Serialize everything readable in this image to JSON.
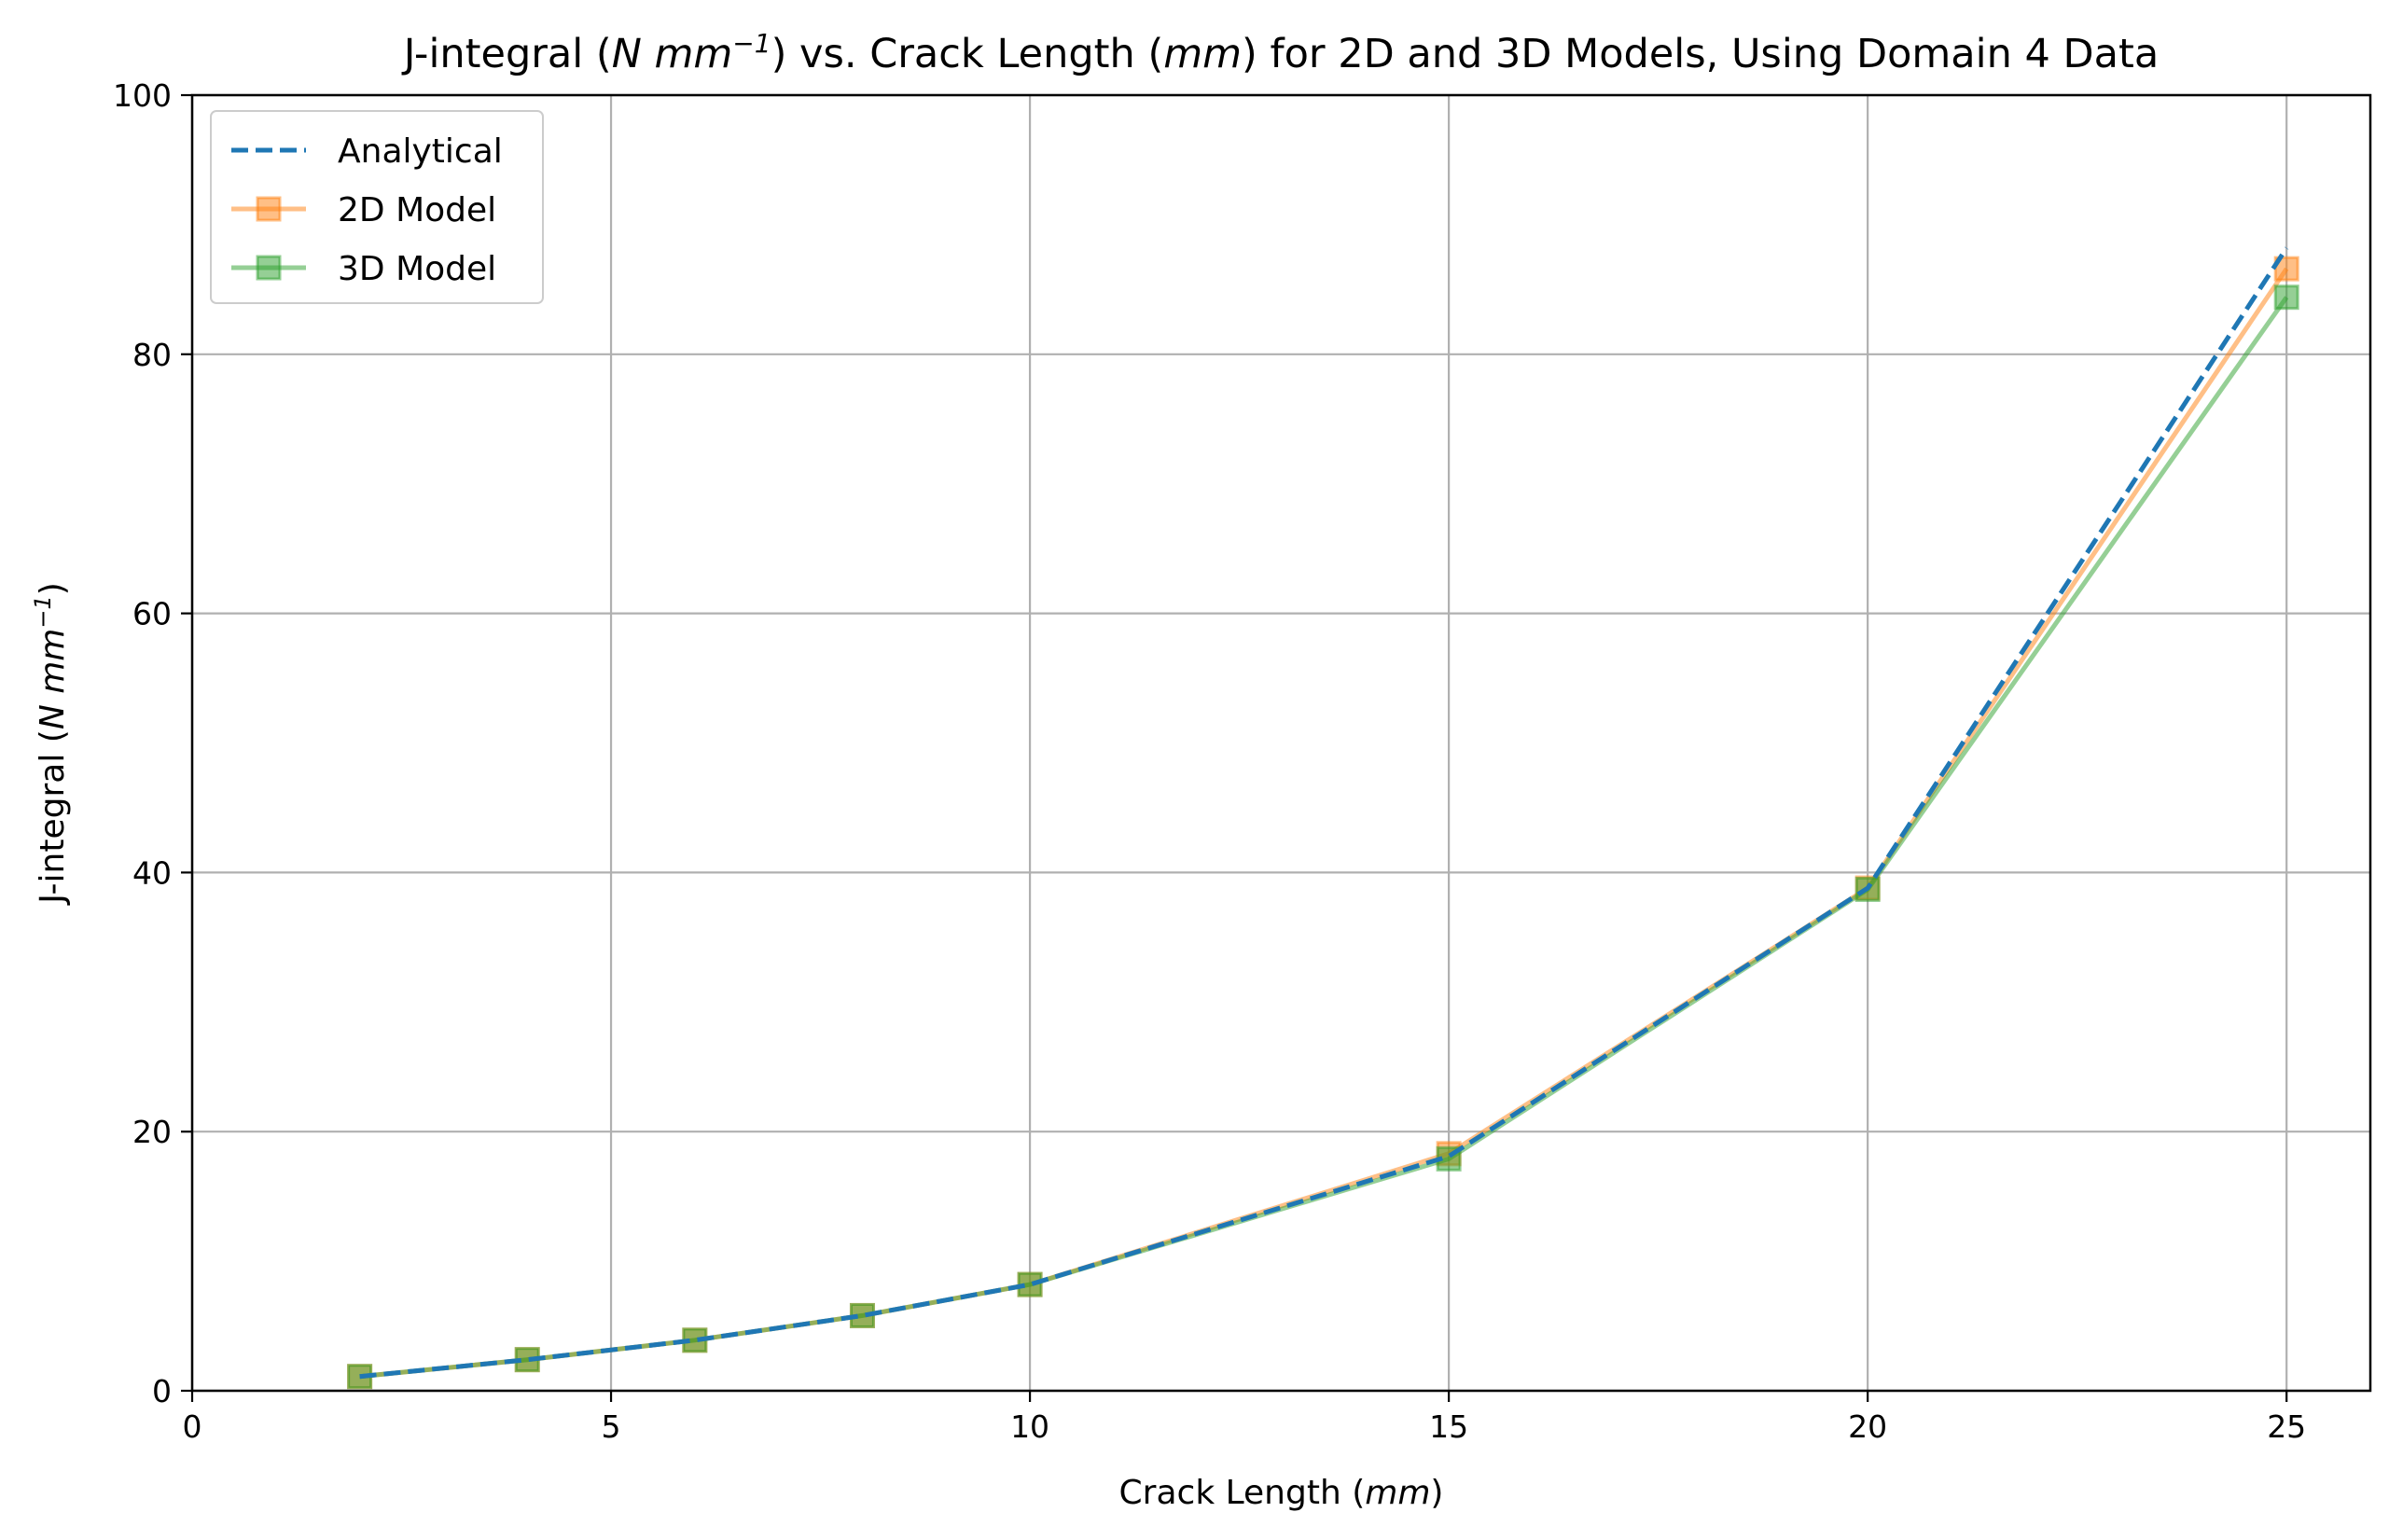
{
  "chart_data": {
    "type": "line",
    "title": {
      "prefix": "J-integral (",
      "unit_main": "N mm",
      "unit_exp": "−1",
      "middle": ") vs. Crack Length (",
      "len_unit": "mm",
      "suffix": ") for 2D and 3D Models, Using Domain 4 Data"
    },
    "xlabel": {
      "text": "Crack Length (",
      "unit": "mm",
      "close": ")"
    },
    "ylabel": {
      "text": "J-integral (",
      "unit_main": "N mm",
      "unit_exp": "−1",
      "close": ")"
    },
    "xlim": [
      0,
      26
    ],
    "ylim": [
      0,
      100
    ],
    "xticks": [
      0,
      5,
      10,
      15,
      20,
      25
    ],
    "yticks": [
      0,
      20,
      40,
      60,
      80,
      100
    ],
    "grid": true,
    "legend_position": "upper-left",
    "x": [
      2,
      4,
      6,
      8,
      10,
      15,
      20,
      25
    ],
    "series": [
      {
        "name": "Analytical",
        "color": "#1f77b4",
        "style": "dashed",
        "marker": "none",
        "alpha": 1,
        "values": [
          1.1,
          2.4,
          3.9,
          5.8,
          8.2,
          18.1,
          38.8,
          88.2
        ]
      },
      {
        "name": "2D Model",
        "color": "#ff7f0e",
        "style": "solid",
        "marker": "square",
        "alpha": 0.5,
        "values": [
          1.1,
          2.4,
          3.9,
          5.8,
          8.2,
          18.3,
          38.8,
          86.6
        ]
      },
      {
        "name": "3D Model",
        "color": "#2ca02c",
        "style": "solid",
        "marker": "square",
        "alpha": 0.5,
        "values": [
          1.1,
          2.4,
          3.9,
          5.8,
          8.2,
          17.9,
          38.7,
          84.4
        ]
      }
    ]
  }
}
